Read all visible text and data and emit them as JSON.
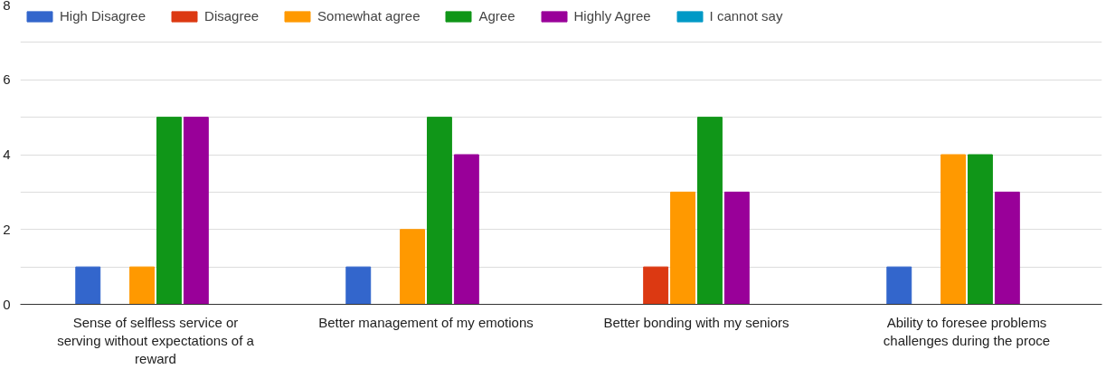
{
  "chart_data": {
    "type": "bar",
    "categories": [
      "Sense of selfless service or serving without expectations of a reward",
      "Better management of my emotions",
      "Better bonding with my seniors",
      "Ability to foresee problems challenges during the proce"
    ],
    "series": [
      {
        "name": "High Disagree",
        "color": "#3366cc",
        "values": [
          1,
          1,
          0,
          1
        ]
      },
      {
        "name": "Disagree",
        "color": "#dc3912",
        "values": [
          0,
          0,
          1,
          0
        ]
      },
      {
        "name": "Somewhat agree",
        "color": "#ff9900",
        "values": [
          1,
          2,
          3,
          4
        ]
      },
      {
        "name": "Agree",
        "color": "#109618",
        "values": [
          5,
          5,
          5,
          4
        ]
      },
      {
        "name": "Highly Agree",
        "color": "#990099",
        "values": [
          5,
          4,
          3,
          3
        ]
      },
      {
        "name": "I cannot say",
        "color": "#0099c6",
        "values": [
          0,
          0,
          0,
          0
        ]
      }
    ],
    "ylim": [
      0,
      8
    ],
    "yticks": [
      0,
      {
        "value": 1,
        "label": null
      },
      2,
      {
        "value": 3,
        "label": null
      },
      4,
      {
        "value": 5,
        "label": null
      },
      6,
      {
        "value": 7,
        "label": null
      },
      8
    ],
    "grid": "y",
    "legend": "top"
  }
}
